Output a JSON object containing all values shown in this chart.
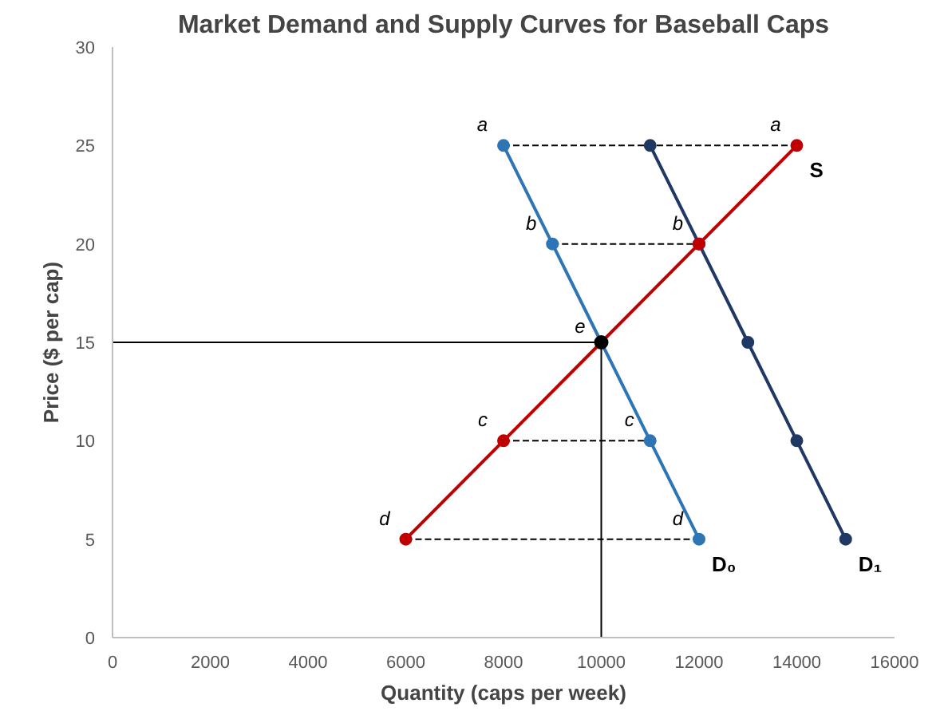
{
  "chart_data": {
    "type": "line",
    "title": "Market Demand and Supply Curves for Baseball Caps",
    "xlabel": "Quantity (caps per week)",
    "ylabel": "Price ($ per cap)",
    "xlim": [
      0,
      16000
    ],
    "xticks": [
      0,
      2000,
      4000,
      6000,
      8000,
      10000,
      12000,
      14000,
      16000
    ],
    "ylim": [
      0,
      30
    ],
    "yticks": [
      0,
      5,
      10,
      15,
      20,
      25,
      30
    ],
    "grid": false,
    "series": [
      {
        "x": [
          8000,
          14000
        ],
        "values": [
          25,
          25
        ],
        "color": "#000000",
        "line_style": "dashed",
        "marker": "none"
      },
      {
        "x": [
          9000,
          12000
        ],
        "values": [
          20,
          20
        ],
        "color": "#000000",
        "line_style": "dashed",
        "marker": "none"
      },
      {
        "x": [
          8000,
          11000
        ],
        "values": [
          10,
          10
        ],
        "color": "#000000",
        "line_style": "dashed",
        "marker": "none"
      },
      {
        "x": [
          6000,
          12000
        ],
        "values": [
          5,
          5
        ],
        "color": "#000000",
        "line_style": "dashed",
        "marker": "none"
      },
      {
        "x": [
          0,
          10000
        ],
        "values": [
          15,
          15
        ],
        "color": "#000000",
        "line_style": "solid",
        "marker": "none"
      },
      {
        "x": [
          10000,
          10000
        ],
        "values": [
          0,
          15
        ],
        "color": "#000000",
        "line_style": "solid",
        "marker": "none"
      },
      {
        "name": "D₀",
        "x": [
          8000,
          9000,
          10000,
          11000,
          12000
        ],
        "values": [
          25,
          20,
          15,
          10,
          5
        ],
        "color": "#2e75b6",
        "line_style": "solid",
        "marker": "circle"
      },
      {
        "name": "D₁",
        "x": [
          11000,
          12000,
          13000,
          14000,
          15000
        ],
        "values": [
          25,
          20,
          15,
          10,
          5
        ],
        "color": "#1f3864",
        "line_style": "solid",
        "marker": "circle"
      },
      {
        "name": "S",
        "x": [
          6000,
          8000,
          10000,
          12000,
          14000
        ],
        "values": [
          5,
          10,
          15,
          20,
          25
        ],
        "color": "#c00000",
        "line_style": "solid",
        "marker": "circle"
      },
      {
        "type": "scatter",
        "x": [
          10000
        ],
        "values": [
          15
        ],
        "color": "#000000",
        "marker": "circle"
      }
    ],
    "annotations": [
      {
        "text": "a",
        "x": 8000,
        "y": 25
      },
      {
        "text": "a",
        "x": 14000,
        "y": 25
      },
      {
        "text": "b",
        "x": 9000,
        "y": 20
      },
      {
        "text": "b",
        "x": 12000,
        "y": 20
      },
      {
        "text": "c",
        "x": 8000,
        "y": 10
      },
      {
        "text": "c",
        "x": 11000,
        "y": 10
      },
      {
        "text": "d",
        "x": 6000,
        "y": 5
      },
      {
        "text": "d",
        "x": 12000,
        "y": 5
      },
      {
        "text": "e",
        "x": 10000,
        "y": 15
      }
    ]
  }
}
